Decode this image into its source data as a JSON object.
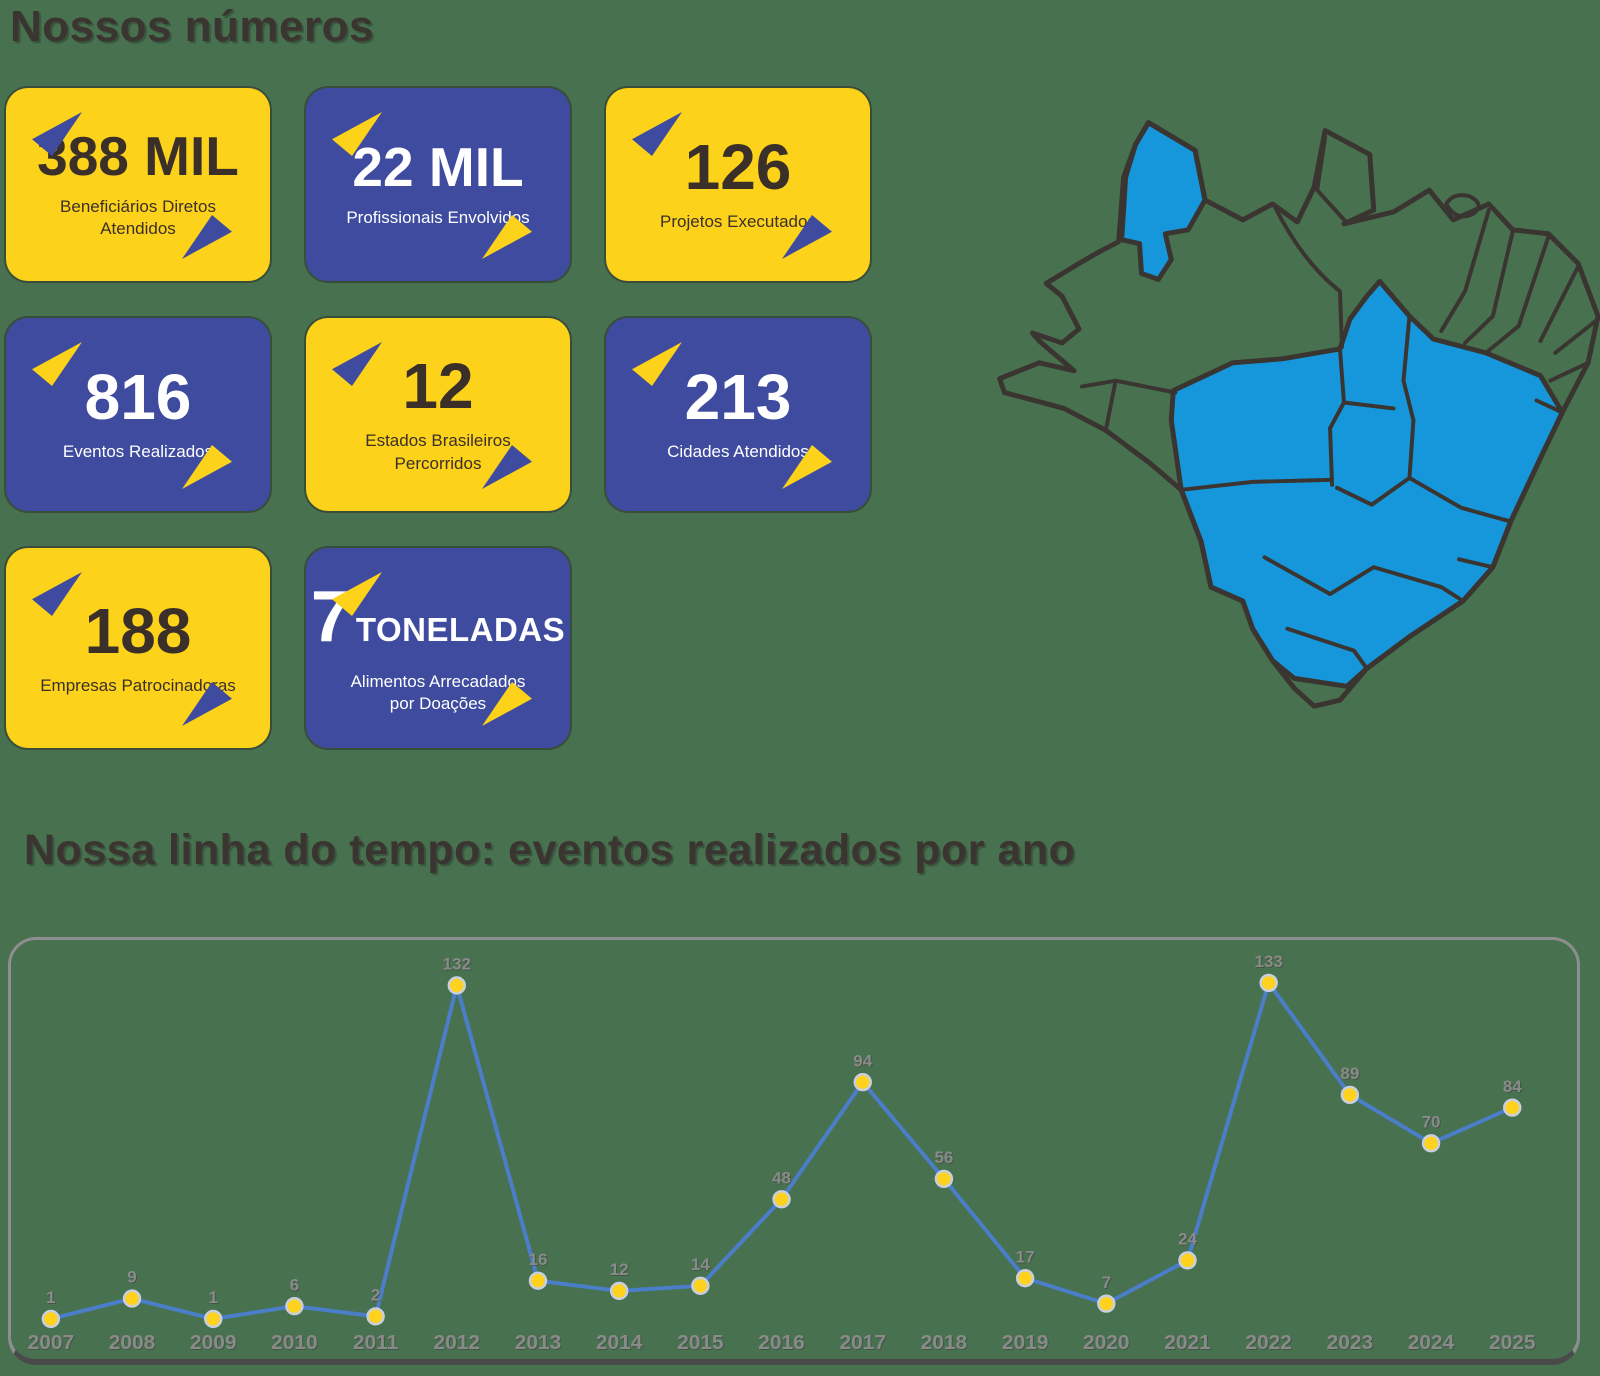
{
  "page": {
    "background_color": "#48714F"
  },
  "numbers_section": {
    "title": "Nossos números",
    "colors": {
      "yellow_card_bg": "#FCD21B",
      "blue_card_bg": "#3E4B9E",
      "dark_text": "#3B3029",
      "light_text": "#FFFFFF"
    },
    "cards": [
      {
        "value": "388 MIL",
        "suffix": "",
        "label": "Beneficiários Diretos Atendidos",
        "theme": "yellow"
      },
      {
        "value": "22 MIL",
        "suffix": "",
        "label": "Profissionais Envolvidos",
        "theme": "blue"
      },
      {
        "value": "126",
        "suffix": "",
        "label": "Projetos Executados",
        "theme": "yellow"
      },
      {
        "value": "816",
        "suffix": "",
        "label": "Eventos Realizados",
        "theme": "blue"
      },
      {
        "value": "12",
        "suffix": "",
        "label": "Estados Brasileiros Percorridos",
        "theme": "yellow"
      },
      {
        "value": "213",
        "suffix": "",
        "label": "Cidades Atendidos",
        "theme": "blue"
      },
      {
        "value": "188",
        "suffix": "",
        "label": "Empresas Patrocinadoras",
        "theme": "yellow"
      },
      {
        "value": "7",
        "suffix": "TONELADAS",
        "label": "Alimentos Arrecadados por Doações",
        "theme": "blue"
      }
    ]
  },
  "map": {
    "highlight_color": "#1697DB",
    "outline_color": "#3A3531"
  },
  "timeline_section": {
    "title": "Nossa linha do tempo: eventos realizados por ano"
  },
  "chart_data": {
    "type": "line",
    "title": "Nossa linha do tempo: eventos realizados por ano",
    "x": [
      "2007",
      "2008",
      "2009",
      "2010",
      "2011",
      "2012",
      "2013",
      "2014",
      "2015",
      "2016",
      "2017",
      "2018",
      "2019",
      "2020",
      "2021",
      "2022",
      "2023",
      "2024",
      "2025"
    ],
    "series": [
      {
        "name": "Eventos realizados por ano",
        "values": [
          1,
          9,
          1,
          6,
          2,
          132,
          16,
          12,
          14,
          48,
          94,
          56,
          17,
          7,
          24,
          133,
          89,
          70,
          84
        ]
      }
    ],
    "xlabel": "",
    "ylabel": "",
    "ylim": [
      0,
      150
    ],
    "grid": false,
    "legend": false,
    "data_labels": true,
    "line_color": "#4B7EC8",
    "marker_color": "#FFD21E",
    "marker_stroke_color": "#C9CFDF",
    "label_color": "#8A8A8A"
  }
}
